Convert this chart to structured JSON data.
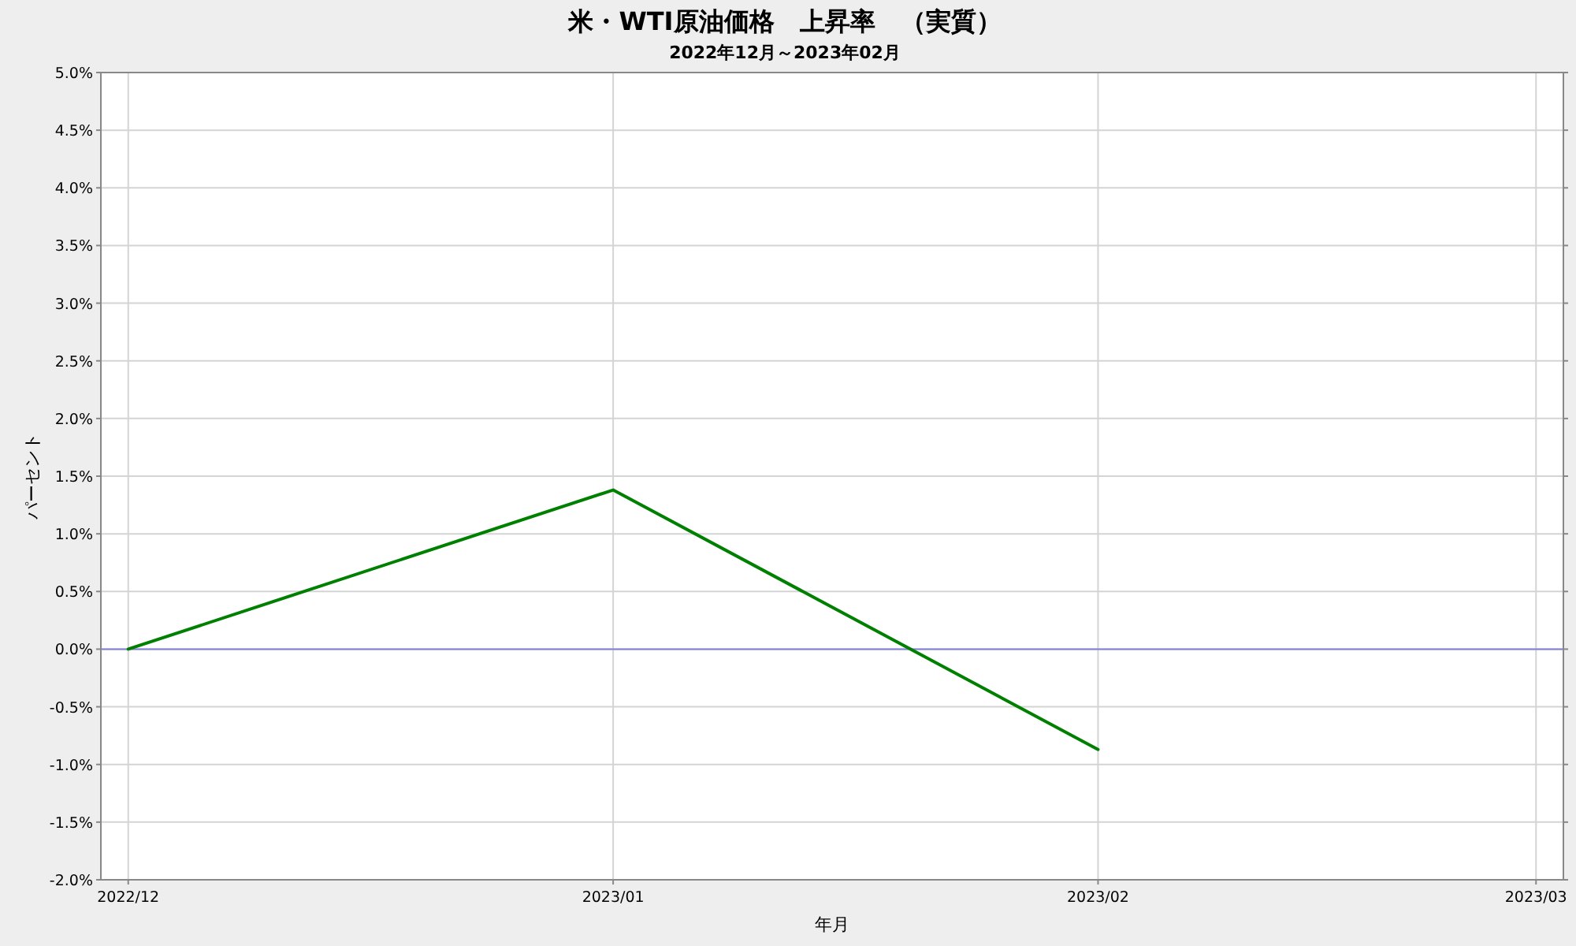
{
  "chart_data": {
    "type": "line",
    "title": "米・WTI原油価格　上昇率　（実質）",
    "subtitle": "2022年12月～2023年02月",
    "xlabel": "年月",
    "ylabel": "パーセント",
    "x": [
      "2022-12",
      "2023-01",
      "2023-02"
    ],
    "series": [
      {
        "color": "#008000",
        "values": [
          0.0,
          1.38,
          -0.87
        ]
      }
    ],
    "xlim": [
      "2022-11-29T06:00",
      "2023-03-02T18:00"
    ],
    "xticks": [
      {
        "value": "2022-12",
        "label": "2022/12"
      },
      {
        "value": "2023-01",
        "label": "2023/01"
      },
      {
        "value": "2023-02",
        "label": "2023/02"
      },
      {
        "value": "2023-03",
        "label": "2023/03"
      }
    ],
    "ylim": [
      -2.0,
      5.0
    ],
    "yticks": [
      {
        "value": -2.0,
        "label": "-2.0%"
      },
      {
        "value": -1.5,
        "label": "-1.5%"
      },
      {
        "value": -1.0,
        "label": "-1.0%"
      },
      {
        "value": -0.5,
        "label": "-0.5%"
      },
      {
        "value": 0.0,
        "label": "0.0%"
      },
      {
        "value": 0.5,
        "label": "0.5%"
      },
      {
        "value": 1.0,
        "label": "1.0%"
      },
      {
        "value": 1.5,
        "label": "1.5%"
      },
      {
        "value": 2.0,
        "label": "2.0%"
      },
      {
        "value": 2.5,
        "label": "2.5%"
      },
      {
        "value": 3.0,
        "label": "3.0%"
      },
      {
        "value": 3.5,
        "label": "3.5%"
      },
      {
        "value": 4.0,
        "label": "4.0%"
      },
      {
        "value": 4.5,
        "label": "4.5%"
      },
      {
        "value": 5.0,
        "label": "5.0%"
      }
    ],
    "ref_lines": [
      {
        "axis": "y",
        "value": 0.0,
        "color": "#8080d8"
      }
    ],
    "grid": true,
    "marker": "none",
    "line_style": "solid"
  }
}
